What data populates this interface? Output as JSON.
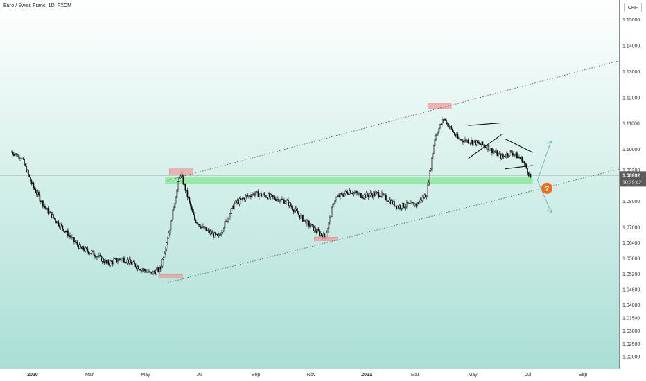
{
  "header": {
    "title": "Euro / Swiss Franc, 1D, FXCM",
    "currency": "CHF"
  },
  "price_tag": {
    "price": "1.08992",
    "countdown": "10:29:42"
  },
  "alert_badge": "?",
  "colors": {
    "bg_top": "#ffffff",
    "bg_bottom": "#a9dfd5",
    "candle": "#000000",
    "channel_line": "#555555",
    "support_zone": "#7deb8f",
    "pivot_box": "#f4a0a0",
    "alert": "#f26b1d",
    "price_tag_bg": "#5b5b5b",
    "scenario_arrow": "#7ab6c2"
  },
  "chart_data": {
    "type": "candlestick",
    "title": "Euro / Swiss Franc, 1D, FXCM",
    "y_ticks": [
      "1.15000",
      "1.14000",
      "1.13000",
      "1.12000",
      "1.11000",
      "1.10000",
      "1.09200",
      "1.08800",
      "1.08000",
      "1.07000",
      "1.06400",
      "1.05800",
      "1.05200",
      "1.04600",
      "1.04000",
      "1.03500",
      "1.03000",
      "1.02500",
      "1.02000"
    ],
    "x_ticks": [
      "2020",
      "Mar",
      "May",
      "Jul",
      "Sep",
      "Nov",
      "2021",
      "Mar",
      "May",
      "Jul",
      "Sep"
    ],
    "ylim": [
      1.0155,
      1.156
    ],
    "last_price": 1.08992,
    "series_path": [
      [
        "2019-12-10",
        1.099
      ],
      [
        "2019-12-20",
        1.097
      ],
      [
        "2020-01-01",
        1.086
      ],
      [
        "2020-01-15",
        1.077
      ],
      [
        "2020-02-01",
        1.07
      ],
      [
        "2020-02-20",
        1.062
      ],
      [
        "2020-03-05",
        1.06
      ],
      [
        "2020-03-20",
        1.056
      ],
      [
        "2020-04-05",
        1.058
      ],
      [
        "2020-04-20",
        1.055
      ],
      [
        "2020-05-05",
        1.052
      ],
      [
        "2020-05-15",
        1.054
      ],
      [
        "2020-05-25",
        1.07
      ],
      [
        "2020-06-05",
        1.091
      ],
      [
        "2020-06-20",
        1.073
      ],
      [
        "2020-07-01",
        1.069
      ],
      [
        "2020-07-15",
        1.066
      ],
      [
        "2020-08-01",
        1.079
      ],
      [
        "2020-08-20",
        1.083
      ],
      [
        "2020-09-05",
        1.082
      ],
      [
        "2020-09-25",
        1.08
      ],
      [
        "2020-10-10",
        1.074
      ],
      [
        "2020-10-25",
        1.069
      ],
      [
        "2020-11-05",
        1.066
      ],
      [
        "2020-11-15",
        1.081
      ],
      [
        "2020-12-01",
        1.084
      ],
      [
        "2020-12-15",
        1.082
      ],
      [
        "2021-01-01",
        1.083
      ],
      [
        "2021-01-20",
        1.078
      ],
      [
        "2021-02-10",
        1.079
      ],
      [
        "2021-02-20",
        1.083
      ],
      [
        "2021-03-01",
        1.105
      ],
      [
        "2021-03-10",
        1.112
      ],
      [
        "2021-03-25",
        1.104
      ],
      [
        "2021-04-10",
        1.103
      ],
      [
        "2021-04-25",
        1.101
      ],
      [
        "2021-05-10",
        1.097
      ],
      [
        "2021-05-20",
        1.099
      ],
      [
        "2021-06-01",
        1.096
      ],
      [
        "2021-06-10",
        1.089
      ]
    ],
    "support_zone": {
      "from": "2020-05-20",
      "to": "2021-06-12",
      "low": 1.0868,
      "high": 1.0892
    },
    "pivot_markers": [
      {
        "date": "2020-05-25",
        "low": 1.0506,
        "high": 1.0518
      },
      {
        "date": "2020-06-05",
        "low": 1.0905,
        "high": 1.0925
      },
      {
        "date": "2020-11-05",
        "low": 1.0648,
        "high": 1.0662
      },
      {
        "date": "2021-03-05",
        "low": 1.1158,
        "high": 1.1178
      }
    ],
    "channel": {
      "upper": [
        [
          "2020-05-20",
          1.0878
        ],
        [
          "2021-10-15",
          1.1375
        ]
      ],
      "lower": [
        [
          "2020-05-20",
          1.0484
        ],
        [
          "2021-10-15",
          1.0955
        ]
      ]
    },
    "scenarios": [
      "up",
      "down"
    ]
  }
}
